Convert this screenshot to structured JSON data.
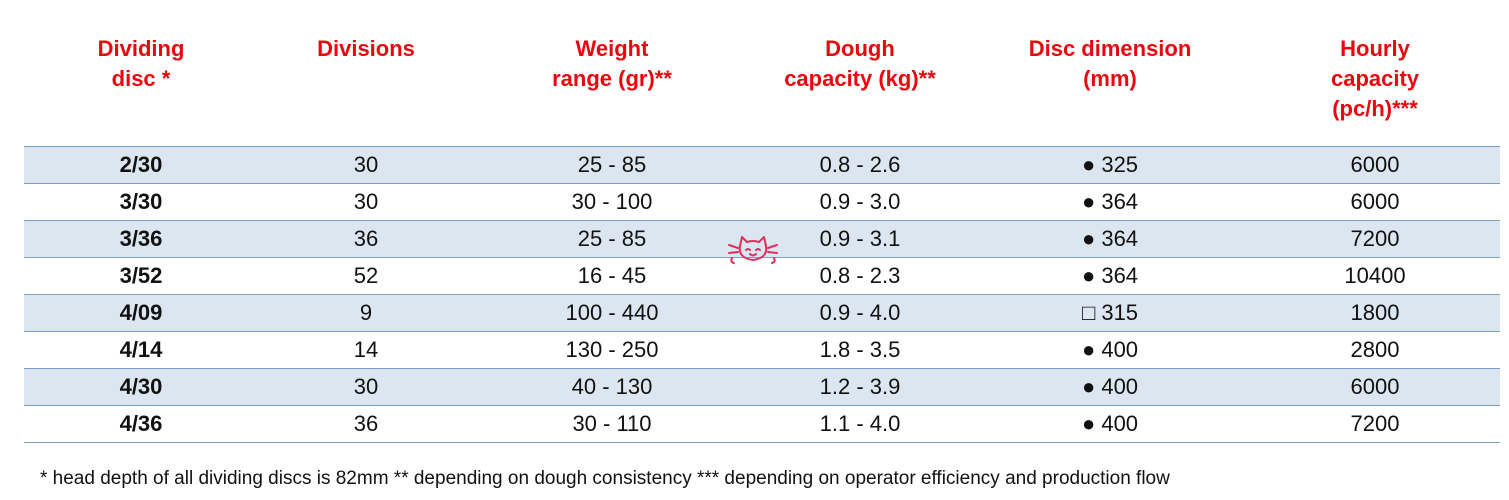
{
  "table": {
    "headers": {
      "disc_l1": "Dividing",
      "disc_l2": "disc *",
      "divisions_l1": "Divisions",
      "weight_l1": "Weight",
      "weight_l2": "range (gr)**",
      "dough_l1": "Dough",
      "dough_l2": "capacity (kg)**",
      "dimension_l1": "Disc dimension",
      "dimension_l2": "(mm)",
      "hourly_l1": "Hourly",
      "hourly_l2": "capacity",
      "hourly_l3": "(pc/h)***"
    },
    "rows": [
      {
        "disc": "2/30",
        "divisions": "30",
        "weight": "25 - 85",
        "dough": "0.8 - 2.6",
        "dimension": "● 325",
        "hourly": "6000"
      },
      {
        "disc": "3/30",
        "divisions": "30",
        "weight": "30 - 100",
        "dough": "0.9 - 3.0",
        "dimension": "● 364",
        "hourly": "6000"
      },
      {
        "disc": "3/36",
        "divisions": "36",
        "weight": "25 - 85",
        "dough": "0.9 - 3.1",
        "dimension": "● 364",
        "hourly": "7200"
      },
      {
        "disc": "3/52",
        "divisions": "52",
        "weight": "16 - 45",
        "dough": "0.8 - 2.3",
        "dimension": "● 364",
        "hourly": "10400"
      },
      {
        "disc": "4/09",
        "divisions": "9",
        "weight": "100 - 440",
        "dough": "0.9 - 4.0",
        "dimension": "□ 315",
        "hourly": "1800"
      },
      {
        "disc": "4/14",
        "divisions": "14",
        "weight": "130 - 250",
        "dough": "1.8 - 3.5",
        "dimension": "● 400",
        "hourly": "2800"
      },
      {
        "disc": "4/30",
        "divisions": "30",
        "weight": "40 - 130",
        "dough": "1.2 - 3.9",
        "dimension": "● 400",
        "hourly": "6000"
      },
      {
        "disc": "4/36",
        "divisions": "36",
        "weight": "30 - 110",
        "dough": "1.1 - 4.0",
        "dimension": "● 400",
        "hourly": "7200"
      }
    ]
  },
  "footnote": "* head depth of all dividing discs is 82mm ** depending on dough consistency *** depending on operator efficiency and production flow",
  "colors": {
    "header_text": "#e8070e",
    "row_shade": "#dce6f1",
    "rule": "#7f9ec4",
    "logo": "#e0305a"
  },
  "watermark_icon": "cat-face-icon"
}
